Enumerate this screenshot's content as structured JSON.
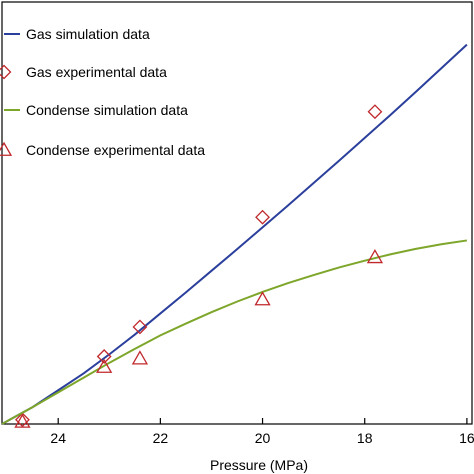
{
  "chart_data": {
    "type": "line",
    "xlabel": "Pressure (MPa)",
    "x_reversed": true,
    "xlim": [
      25.1,
      15.9
    ],
    "ylim": [
      0,
      1
    ],
    "x_ticks": [
      24,
      22,
      20,
      18,
      16
    ],
    "x_tick_labels": [
      "24",
      "22",
      "20",
      "18",
      "16"
    ],
    "legend_position": "top-left",
    "series": [
      {
        "name": "Gas simulation data",
        "kind": "line",
        "color": "#2b3f9c",
        "x": [
          25.1,
          24.8,
          24.5,
          24.0,
          23.5,
          23.0,
          22.5,
          22.0,
          21.5,
          21.0,
          20.5,
          20.0,
          19.5,
          19.0,
          18.5,
          18.0,
          17.5,
          17.0,
          16.5,
          16.0
        ],
        "y": [
          0.0,
          0.02,
          0.04,
          0.08,
          0.12,
          0.165,
          0.212,
          0.262,
          0.312,
          0.363,
          0.414,
          0.466,
          0.518,
          0.571,
          0.624,
          0.678,
          0.732,
          0.787,
          0.843,
          0.899
        ]
      },
      {
        "name": "Gas experimental data",
        "kind": "marker",
        "marker": "diamond",
        "color": "#c0282c",
        "x": [
          24.7,
          23.1,
          22.4,
          20.0,
          17.8
        ],
        "y": [
          0.01,
          0.16,
          0.23,
          0.49,
          0.74
        ]
      },
      {
        "name": "Condense simulation data",
        "kind": "line",
        "color": "#7da62a",
        "x": [
          25.1,
          24.8,
          24.5,
          24.0,
          23.5,
          23.0,
          22.5,
          22.0,
          21.5,
          21.0,
          20.5,
          20.0,
          19.5,
          19.0,
          18.5,
          18.0,
          17.5,
          17.0,
          16.5,
          16.0
        ],
        "y": [
          0.0,
          0.02,
          0.04,
          0.075,
          0.11,
          0.145,
          0.178,
          0.21,
          0.238,
          0.265,
          0.29,
          0.313,
          0.334,
          0.353,
          0.371,
          0.387,
          0.402,
          0.415,
          0.426,
          0.435
        ]
      },
      {
        "name": "Condense experimental data",
        "kind": "marker",
        "marker": "triangle",
        "color": "#c0282c",
        "x": [
          24.7,
          23.1,
          22.4,
          20.0,
          17.8
        ],
        "y": [
          0.005,
          0.135,
          0.155,
          0.295,
          0.395
        ]
      }
    ]
  }
}
